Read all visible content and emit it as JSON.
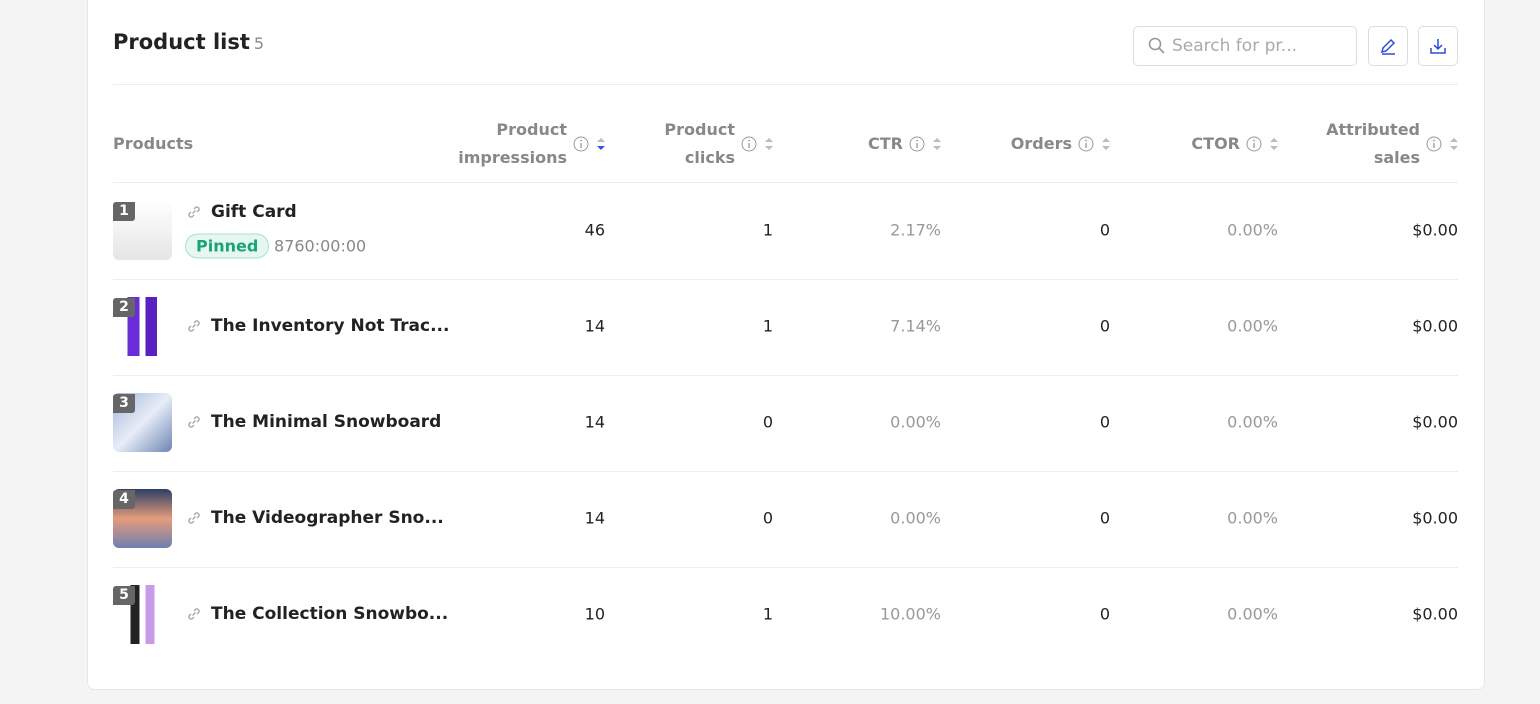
{
  "header": {
    "title": "Product list",
    "count": "5",
    "search_placeholder": "Search for pr..."
  },
  "table": {
    "columns": [
      "Products",
      "Product impressions",
      "Product clicks",
      "CTR",
      "Orders",
      "CTOR",
      "Attributed sales"
    ],
    "rows": [
      {
        "rank": "1",
        "name": "Gift Card",
        "badge": "Pinned",
        "duration": "8760:00:00",
        "cells": [
          "46",
          "1",
          "2.17%",
          "0",
          "0.00%",
          "$0.00"
        ]
      },
      {
        "rank": "2",
        "name": "The Inventory Not Trac...",
        "cells": [
          "14",
          "1",
          "7.14%",
          "0",
          "0.00%",
          "$0.00"
        ]
      },
      {
        "rank": "3",
        "name": "The Minimal Snowboard",
        "cells": [
          "14",
          "0",
          "0.00%",
          "0",
          "0.00%",
          "$0.00"
        ]
      },
      {
        "rank": "4",
        "name": "The Videographer Sno...",
        "cells": [
          "14",
          "0",
          "0.00%",
          "0",
          "0.00%",
          "$0.00"
        ]
      },
      {
        "rank": "5",
        "name": "The Collection Snowbo...",
        "cells": [
          "10",
          "1",
          "10.00%",
          "0",
          "0.00%",
          "$0.00"
        ]
      }
    ]
  }
}
